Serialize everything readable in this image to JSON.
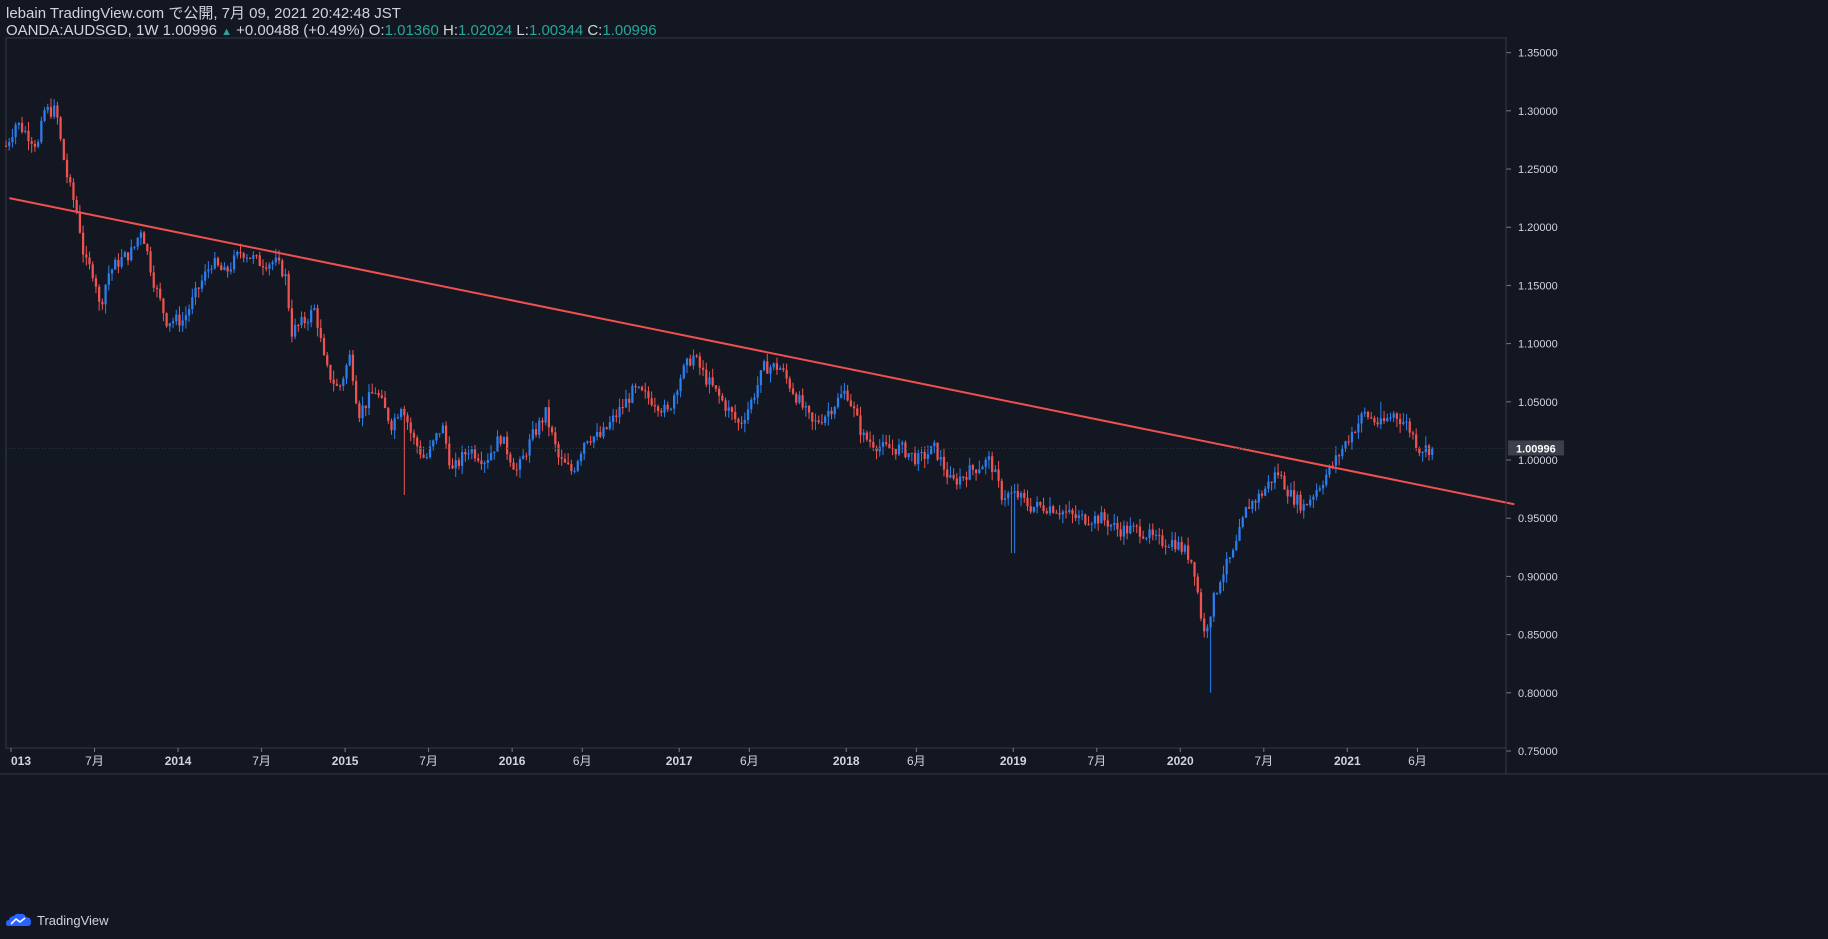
{
  "header": {
    "published": "lebain TradingView.com で公開, 7月 09, 2021 20:42:48 JST",
    "symbol_line": "OANDA:AUDSGD, 1W 1.00996",
    "change": "+0.00488 (+0.49%)",
    "o_label": "O:",
    "o_value": "1.01360",
    "h_label": "H:",
    "h_value": "1.02024",
    "l_label": "L:",
    "l_value": "1.00344",
    "c_label": "C:",
    "c_value": "1.00996"
  },
  "footer": {
    "brand": "TradingView"
  },
  "colors": {
    "background": "#131722",
    "up": "#2a7ff0",
    "down": "#ef5350",
    "trendline": "#f05050",
    "axis": "#787b86",
    "text": "#d1d4dc",
    "grid": "#1e2330"
  },
  "chart_data": {
    "type": "candlestick",
    "title": "OANDA:AUDSGD, 1W",
    "ylim": [
      0.75,
      1.36
    ],
    "y_ticks": [
      "1.35000",
      "1.30000",
      "1.25000",
      "1.20000",
      "1.15000",
      "1.10000",
      "1.05000",
      "1.00000",
      "0.95000",
      "0.90000",
      "0.85000",
      "0.80000",
      "0.75000"
    ],
    "x_ticks": [
      {
        "label": "013",
        "t": 2013.0,
        "bold": true
      },
      {
        "label": "7月",
        "t": 2013.5,
        "bold": false
      },
      {
        "label": "2014",
        "t": 2014.0,
        "bold": true
      },
      {
        "label": "7月",
        "t": 2014.5,
        "bold": false
      },
      {
        "label": "2015",
        "t": 2015.0,
        "bold": true
      },
      {
        "label": "7月",
        "t": 2015.5,
        "bold": false
      },
      {
        "label": "2016",
        "t": 2016.0,
        "bold": true
      },
      {
        "label": "6月",
        "t": 2016.42,
        "bold": false
      },
      {
        "label": "2017",
        "t": 2017.0,
        "bold": true
      },
      {
        "label": "6月",
        "t": 2017.42,
        "bold": false
      },
      {
        "label": "2018",
        "t": 2018.0,
        "bold": true
      },
      {
        "label": "6月",
        "t": 2018.42,
        "bold": false
      },
      {
        "label": "2019",
        "t": 2019.0,
        "bold": true
      },
      {
        "label": "7月",
        "t": 2019.5,
        "bold": false
      },
      {
        "label": "2020",
        "t": 2020.0,
        "bold": true
      },
      {
        "label": "7月",
        "t": 2020.5,
        "bold": false
      },
      {
        "label": "2021",
        "t": 2021.0,
        "bold": true
      },
      {
        "label": "6月",
        "t": 2021.42,
        "bold": false
      }
    ],
    "last_price": "1.00996",
    "last_value": 1.00996,
    "trendline": [
      [
        2012.99,
        1.225
      ],
      [
        2022.0,
        0.962
      ]
    ],
    "path_keypoints": [
      [
        2012.99,
        1.27
      ],
      [
        2013.05,
        1.29
      ],
      [
        2013.12,
        1.28
      ],
      [
        2013.18,
        1.27
      ],
      [
        2013.22,
        1.3
      ],
      [
        2013.29,
        1.3
      ],
      [
        2013.32,
        1.27
      ],
      [
        2013.36,
        1.24
      ],
      [
        2013.42,
        1.21
      ],
      [
        2013.46,
        1.17
      ],
      [
        2013.52,
        1.16
      ],
      [
        2013.55,
        1.13
      ],
      [
        2013.6,
        1.16
      ],
      [
        2013.66,
        1.17
      ],
      [
        2013.75,
        1.18
      ],
      [
        2013.8,
        1.2
      ],
      [
        2013.88,
        1.15
      ],
      [
        2013.95,
        1.12
      ],
      [
        2014.05,
        1.12
      ],
      [
        2014.15,
        1.15
      ],
      [
        2014.22,
        1.17
      ],
      [
        2014.3,
        1.16
      ],
      [
        2014.4,
        1.18
      ],
      [
        2014.5,
        1.17
      ],
      [
        2014.6,
        1.17
      ],
      [
        2014.66,
        1.16
      ],
      [
        2014.7,
        1.11
      ],
      [
        2014.78,
        1.12
      ],
      [
        2014.84,
        1.13
      ],
      [
        2014.9,
        1.08
      ],
      [
        2014.98,
        1.06
      ],
      [
        2015.05,
        1.09
      ],
      [
        2015.1,
        1.04
      ],
      [
        2015.2,
        1.06
      ],
      [
        2015.3,
        1.03
      ],
      [
        2015.36,
        1.05
      ],
      [
        2015.42,
        1.02
      ],
      [
        2015.5,
        1.0
      ],
      [
        2015.6,
        1.03
      ],
      [
        2015.66,
        0.99
      ],
      [
        2015.76,
        1.01
      ],
      [
        2015.86,
        1.0
      ],
      [
        2015.95,
        1.02
      ],
      [
        2016.05,
        0.99
      ],
      [
        2016.14,
        1.02
      ],
      [
        2016.22,
        1.04
      ],
      [
        2016.3,
        1.0
      ],
      [
        2016.38,
        0.99
      ],
      [
        2016.46,
        1.02
      ],
      [
        2016.55,
        1.02
      ],
      [
        2016.65,
        1.04
      ],
      [
        2016.75,
        1.06
      ],
      [
        2016.88,
        1.05
      ],
      [
        2016.95,
        1.04
      ],
      [
        2017.02,
        1.07
      ],
      [
        2017.1,
        1.09
      ],
      [
        2017.18,
        1.07
      ],
      [
        2017.28,
        1.05
      ],
      [
        2017.38,
        1.03
      ],
      [
        2017.45,
        1.05
      ],
      [
        2017.53,
        1.08
      ],
      [
        2017.62,
        1.08
      ],
      [
        2017.74,
        1.05
      ],
      [
        2017.82,
        1.03
      ],
      [
        2017.9,
        1.04
      ],
      [
        2018.02,
        1.06
      ],
      [
        2018.12,
        1.02
      ],
      [
        2018.24,
        1.01
      ],
      [
        2018.35,
        1.01
      ],
      [
        2018.45,
        1.0
      ],
      [
        2018.55,
        1.01
      ],
      [
        2018.65,
        0.98
      ],
      [
        2018.75,
        0.99
      ],
      [
        2018.88,
        1.0
      ],
      [
        2018.95,
        0.97
      ],
      [
        2019.04,
        0.97
      ],
      [
        2019.12,
        0.96
      ],
      [
        2019.25,
        0.96
      ],
      [
        2019.4,
        0.95
      ],
      [
        2019.55,
        0.95
      ],
      [
        2019.65,
        0.94
      ],
      [
        2019.78,
        0.94
      ],
      [
        2019.88,
        0.93
      ],
      [
        2019.98,
        0.93
      ],
      [
        2020.06,
        0.92
      ],
      [
        2020.1,
        0.91
      ],
      [
        2020.16,
        0.85
      ],
      [
        2020.2,
        0.87
      ],
      [
        2020.26,
        0.9
      ],
      [
        2020.34,
        0.92
      ],
      [
        2020.42,
        0.96
      ],
      [
        2020.5,
        0.97
      ],
      [
        2020.6,
        0.99
      ],
      [
        2020.68,
        0.97
      ],
      [
        2020.76,
        0.96
      ],
      [
        2020.86,
        0.98
      ],
      [
        2020.95,
        1.0
      ],
      [
        2021.03,
        1.02
      ],
      [
        2021.12,
        1.04
      ],
      [
        2021.22,
        1.03
      ],
      [
        2021.3,
        1.04
      ],
      [
        2021.38,
        1.03
      ],
      [
        2021.45,
        1.01
      ],
      [
        2021.52,
        1.01
      ]
    ],
    "wick_extremes": [
      [
        2013.25,
        1.31
      ],
      [
        2015.35,
        0.97
      ],
      [
        2019.0,
        0.92
      ],
      [
        2020.18,
        0.8
      ],
      [
        2021.2,
        1.05
      ]
    ],
    "date_range": [
      2012.97,
      2021.52
    ],
    "x_view": [
      2012.97,
      2021.95
    ]
  }
}
